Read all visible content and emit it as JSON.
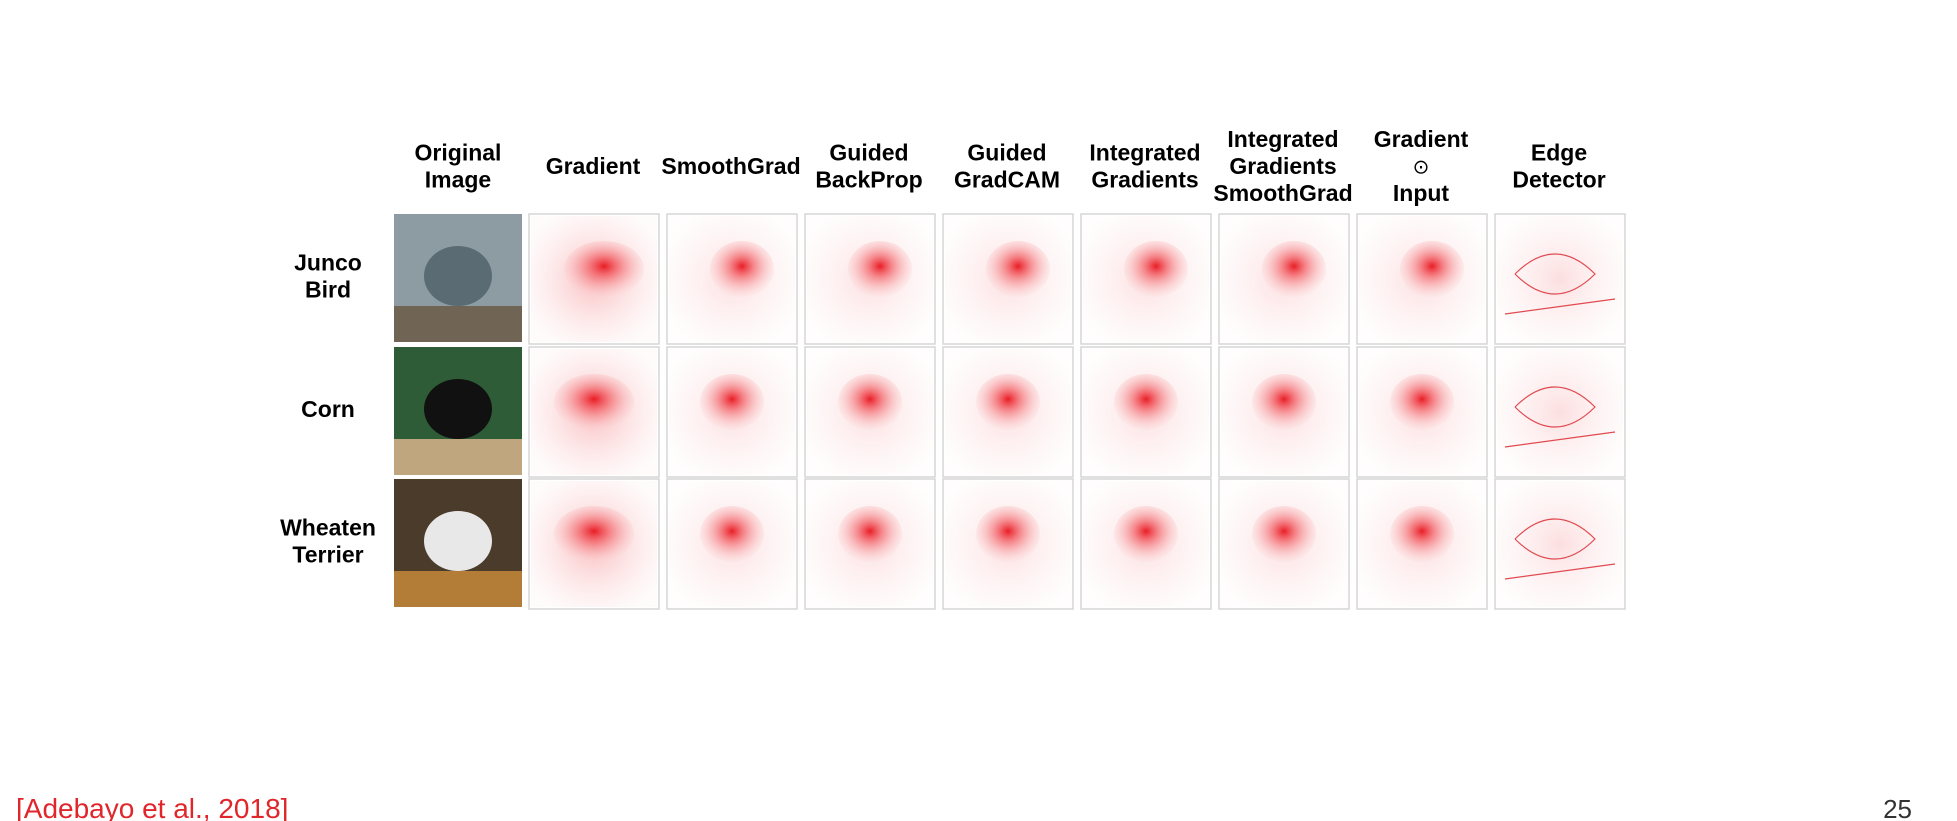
{
  "columns": [
    [
      "Original",
      "Image"
    ],
    [
      "Gradient"
    ],
    [
      "SmoothGrad"
    ],
    [
      "Guided",
      "BackProp"
    ],
    [
      "Guided",
      "GradCAM"
    ],
    [
      "Integrated",
      "Gradients"
    ],
    [
      "Integrated",
      "Gradients",
      "SmoothGrad"
    ],
    [
      "Gradient",
      "⊙",
      "Input"
    ],
    [
      "Edge",
      "Detector"
    ]
  ],
  "rows": [
    [
      "Junco",
      "Bird"
    ],
    [
      "Corn"
    ],
    [
      "Wheaten",
      "Terrier"
    ]
  ],
  "citation": "[Adebayo et al., 2018]",
  "page_number": "25"
}
